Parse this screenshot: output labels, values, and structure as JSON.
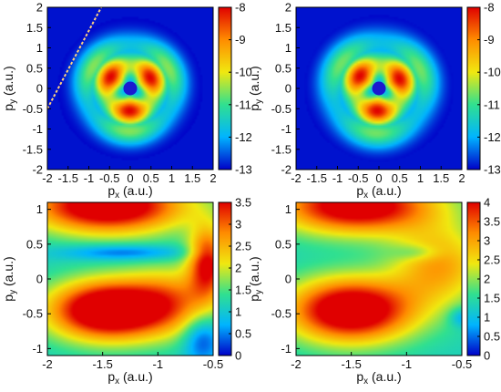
{
  "chart_data": [
    {
      "type": "heatmap",
      "panel": "top-left",
      "xlabel_main": "p",
      "xlabel_sub": "x",
      "xlabel_unit": " (a.u.)",
      "ylabel_main": "p",
      "ylabel_sub": "y",
      "ylabel_unit": " (a.u.)",
      "xlim": [
        -2,
        2
      ],
      "ylim": [
        -2,
        2
      ],
      "xticks": [
        "-2",
        "-1.5",
        "-1",
        "-0.5",
        "0",
        "0.5",
        "1",
        "1.5",
        "2"
      ],
      "yticks": [
        "-2",
        "-1.5",
        "-1",
        "-0.5",
        "0",
        "0.5",
        "1",
        "1.5",
        "2"
      ],
      "colorbar": {
        "min": -13,
        "max": -8,
        "ticks": [
          "-8",
          "-9",
          "-10",
          "-11",
          "-12",
          "-13"
        ]
      },
      "features": {
        "lobes": 3,
        "center_dot_color": "#1a1ad0",
        "dashed_line": true
      }
    },
    {
      "type": "heatmap",
      "panel": "top-right",
      "xlabel_main": "p",
      "xlabel_sub": "x",
      "xlabel_unit": " (a.u.)",
      "ylabel_main": "p",
      "ylabel_sub": "y",
      "ylabel_unit": " (a.u.)",
      "xlim": [
        -2,
        2
      ],
      "ylim": [
        -2,
        2
      ],
      "xticks": [
        "-2",
        "-1.5",
        "-1",
        "-0.5",
        "0",
        "0.5",
        "1",
        "1.5",
        "2"
      ],
      "yticks": [
        "-2",
        "-1.5",
        "-1",
        "-0.5",
        "0",
        "0.5",
        "1",
        "1.5",
        "2"
      ],
      "colorbar": {
        "min": -13,
        "max": -8,
        "ticks": [
          "-8",
          "-9",
          "-10",
          "-11",
          "-12",
          "-13"
        ]
      },
      "features": {
        "lobes": 3,
        "center_dot_color": "#1a1ad0",
        "dashed_line": false
      }
    },
    {
      "type": "heatmap",
      "panel": "bottom-left",
      "xlabel_main": "p",
      "xlabel_sub": "x",
      "xlabel_unit": " (a.u.)",
      "ylabel_main": "p",
      "ylabel_sub": "y",
      "ylabel_unit": " (a.u.)",
      "xlim": [
        -2,
        -0.5
      ],
      "ylim": [
        -1.1,
        1.1
      ],
      "xticks": [
        "-2",
        "-1.5",
        "-1",
        "-0.5"
      ],
      "yticks": [
        "-1",
        "-0.5",
        "0",
        "0.5",
        "1"
      ],
      "colorbar": {
        "min": 0,
        "max": 3.5,
        "ticks": [
          "3.5",
          "3",
          "2.5",
          "2",
          "1.5",
          "1",
          "0.5",
          "0"
        ]
      }
    },
    {
      "type": "heatmap",
      "panel": "bottom-right",
      "xlabel_main": "p",
      "xlabel_sub": "x",
      "xlabel_unit": " (a.u.)",
      "ylabel_main": "p",
      "ylabel_sub": "y",
      "ylabel_unit": " (a.u.)",
      "xlim": [
        -2,
        -0.5
      ],
      "ylim": [
        -1.1,
        1.1
      ],
      "xticks": [
        "-2",
        "-1.5",
        "-1",
        "-0.5"
      ],
      "yticks": [
        "-1",
        "-0.5",
        "0",
        "0.5",
        "1"
      ],
      "colorbar": {
        "min": 0,
        "max": 4,
        "ticks": [
          "4",
          "3.5",
          "3",
          "2.5",
          "2",
          "1.5",
          "1",
          "0.5",
          "0"
        ]
      }
    }
  ]
}
